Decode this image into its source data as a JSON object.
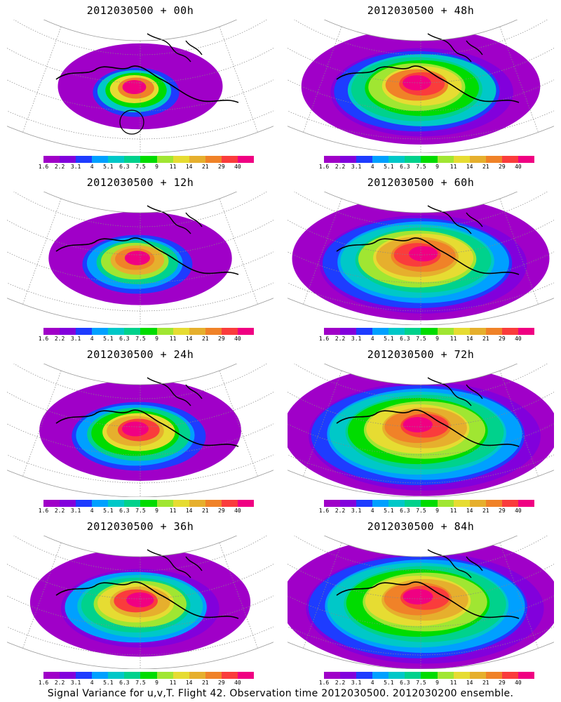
{
  "panels": [
    {
      "title": "2012030500 + 00h",
      "lead_hours": 0
    },
    {
      "title": "2012030500 + 48h",
      "lead_hours": 48
    },
    {
      "title": "2012030500 + 12h",
      "lead_hours": 12
    },
    {
      "title": "2012030500 + 60h",
      "lead_hours": 60
    },
    {
      "title": "2012030500 + 24h",
      "lead_hours": 24
    },
    {
      "title": "2012030500 + 72h",
      "lead_hours": 72
    },
    {
      "title": "2012030500 + 36h",
      "lead_hours": 36
    },
    {
      "title": "2012030500 + 84h",
      "lead_hours": 84
    }
  ],
  "colorbar": {
    "labels": [
      "1.6",
      "2.2",
      "3.1",
      "4",
      "5.1",
      "6.3",
      "7.5",
      "9",
      "11",
      "14",
      "21",
      "29",
      "40"
    ],
    "colors": [
      "#a000c8",
      "#8200dc",
      "#1e3cff",
      "#00a0ff",
      "#00c8c8",
      "#00d28c",
      "#00dc00",
      "#a0e632",
      "#e6dc32",
      "#e6af2d",
      "#f08228",
      "#fa3c3c",
      "#f00082"
    ]
  },
  "caption": "Signal Variance for u,v,T. Flight 42. Observation time 2012030500. 2012030200 ensemble."
}
